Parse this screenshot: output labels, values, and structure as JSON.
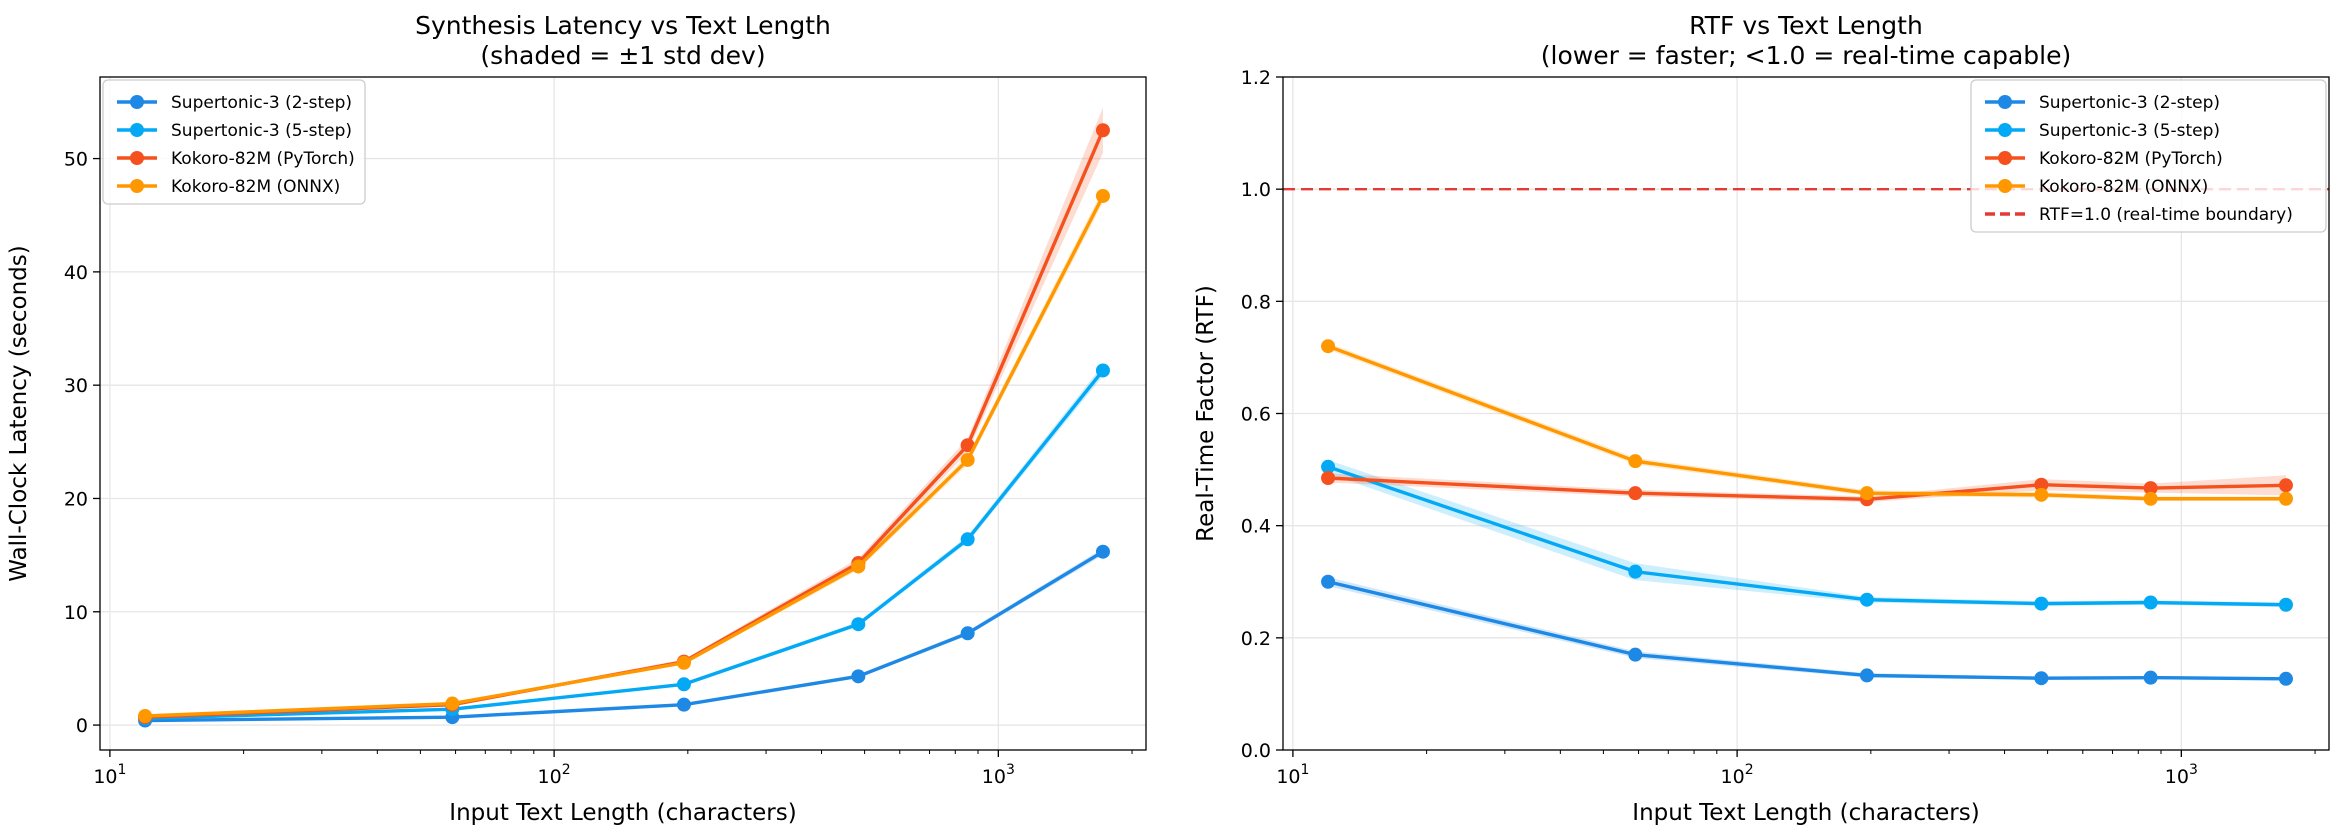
{
  "chart_data": [
    {
      "type": "line",
      "title": "Synthesis Latency vs Text Length",
      "subtitle": "(shaded = ±1 std dev)",
      "xlabel": "Input Text Length (characters)",
      "ylabel": "Wall-Clock Latency (seconds)",
      "xscale": "log",
      "xlim": [
        9.5,
        2150
      ],
      "ylim": [
        -2.2,
        57.2
      ],
      "x_tick_labels": [
        {
          "base": "10",
          "exp": "1"
        },
        {
          "base": "10",
          "exp": "2"
        },
        {
          "base": "10",
          "exp": "3"
        }
      ],
      "y_ticks": [
        "0",
        "10",
        "20",
        "30",
        "40",
        "50"
      ],
      "y_tick_values": [
        0,
        10,
        20,
        30,
        40,
        50
      ],
      "grid": true,
      "legend_position": "upper-left",
      "x": [
        12,
        59,
        196,
        484,
        853,
        1720
      ],
      "series": [
        {
          "name": "Supertonic-3 (2-step)",
          "color": "#1e88e5",
          "values": [
            0.4,
            0.7,
            1.8,
            4.3,
            8.1,
            15.3
          ],
          "std": [
            0.05,
            0.05,
            0.1,
            0.15,
            0.2,
            0.3
          ]
        },
        {
          "name": "Supertonic-3 (5-step)",
          "color": "#03a9f4",
          "values": [
            0.6,
            1.4,
            3.6,
            8.9,
            16.4,
            31.3
          ],
          "std": [
            0.05,
            0.08,
            0.15,
            0.2,
            0.3,
            0.5
          ]
        },
        {
          "name": "Kokoro-82M (PyTorch)",
          "color": "#f4511e",
          "values": [
            0.7,
            1.8,
            5.6,
            14.3,
            24.7,
            52.5
          ],
          "std": [
            0.05,
            0.1,
            0.2,
            0.4,
            0.6,
            2.0
          ]
        },
        {
          "name": "Kokoro-82M (ONNX)",
          "color": "#ff9800",
          "values": [
            0.8,
            1.9,
            5.5,
            14.0,
            23.4,
            46.7
          ],
          "std": [
            0.05,
            0.1,
            0.15,
            0.3,
            0.4,
            0.6
          ]
        }
      ]
    },
    {
      "type": "line",
      "title": "RTF vs Text Length",
      "subtitle": "(lower = faster; <1.0 = real-time capable)",
      "xlabel": "Input Text Length (characters)",
      "ylabel": "Real-Time Factor (RTF)",
      "xscale": "log",
      "xlim": [
        9.5,
        2150
      ],
      "ylim": [
        0,
        1.2
      ],
      "x_tick_labels": [
        {
          "base": "10",
          "exp": "1"
        },
        {
          "base": "10",
          "exp": "2"
        },
        {
          "base": "10",
          "exp": "3"
        }
      ],
      "y_ticks": [
        "0.0",
        "0.2",
        "0.4",
        "0.6",
        "0.8",
        "1.0",
        "1.2"
      ],
      "y_tick_values": [
        0,
        0.2,
        0.4,
        0.6,
        0.8,
        1.0,
        1.2
      ],
      "grid": true,
      "legend_position": "upper-right",
      "x": [
        12,
        59,
        196,
        484,
        853,
        1720
      ],
      "reference_line": {
        "value": 1.0,
        "label": "RTF=1.0 (real-time boundary)",
        "color": "#e53935"
      },
      "series": [
        {
          "name": "Supertonic-3 (2-step)",
          "color": "#1e88e5",
          "values": [
            0.3,
            0.17,
            0.133,
            0.128,
            0.129,
            0.127
          ],
          "std": [
            0.008,
            0.006,
            0.004,
            0.003,
            0.003,
            0.003
          ]
        },
        {
          "name": "Supertonic-3 (5-step)",
          "color": "#03a9f4",
          "values": [
            0.505,
            0.318,
            0.268,
            0.261,
            0.263,
            0.259
          ],
          "std": [
            0.012,
            0.015,
            0.005,
            0.004,
            0.004,
            0.004
          ]
        },
        {
          "name": "Kokoro-82M (PyTorch)",
          "color": "#f4511e",
          "values": [
            0.485,
            0.458,
            0.447,
            0.473,
            0.467,
            0.472
          ],
          "std": [
            0.008,
            0.006,
            0.005,
            0.01,
            0.008,
            0.018
          ]
        },
        {
          "name": "Kokoro-82M (ONNX)",
          "color": "#ff9800",
          "values": [
            0.72,
            0.515,
            0.458,
            0.455,
            0.448,
            0.448
          ],
          "std": [
            0.006,
            0.006,
            0.005,
            0.005,
            0.004,
            0.004
          ]
        }
      ]
    }
  ]
}
